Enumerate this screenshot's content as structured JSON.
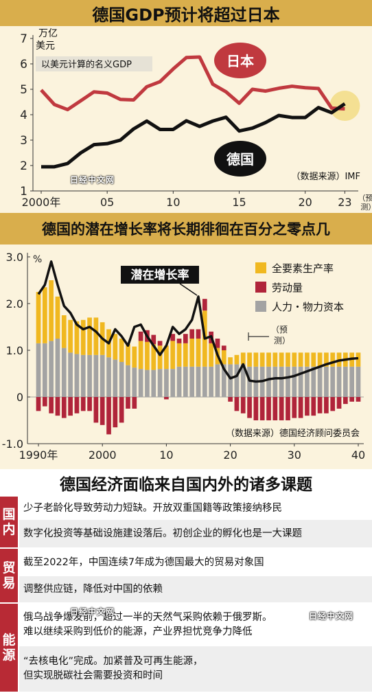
{
  "title1": "德国GDP预计将超过日本",
  "title2": "德国的潜在增长率将长期徘徊在百分之零点几",
  "title3": "德国经济面临来自国内外的诸多课题",
  "chart_data": [
    {
      "type": "line",
      "title": "德国GDP预计将超过日本",
      "ylabel": "万亿美元",
      "note": "以美元计算的名义GDP",
      "source": "（数据来源）IMF",
      "forecast_label": "预测",
      "ylim": [
        1,
        7
      ],
      "yticks": [
        "1",
        "2",
        "3",
        "4",
        "5",
        "6",
        "7"
      ],
      "xticks": [
        {
          "x": 2000,
          "label": "2000年"
        },
        {
          "x": 2005,
          "label": "05"
        },
        {
          "x": 2010,
          "label": "10"
        },
        {
          "x": 2015,
          "label": "15"
        },
        {
          "x": 2020,
          "label": "20"
        },
        {
          "x": 2023,
          "label": "23"
        }
      ],
      "x": [
        2000,
        2001,
        2002,
        2003,
        2004,
        2005,
        2006,
        2007,
        2008,
        2009,
        2010,
        2011,
        2012,
        2013,
        2014,
        2015,
        2016,
        2017,
        2018,
        2019,
        2020,
        2021,
        2022,
        2023
      ],
      "series": [
        {
          "name": "日本",
          "color": "#c0393f",
          "values": [
            4.97,
            4.4,
            4.2,
            4.55,
            4.9,
            4.85,
            4.6,
            4.58,
            5.1,
            5.3,
            5.8,
            6.25,
            6.27,
            5.2,
            4.9,
            4.45,
            5.0,
            4.93,
            5.04,
            5.12,
            5.06,
            5.03,
            4.26,
            4.23
          ]
        },
        {
          "name": "德国",
          "color": "#111111",
          "values": [
            1.95,
            1.95,
            2.08,
            2.5,
            2.82,
            2.86,
            3.0,
            3.44,
            3.75,
            3.42,
            3.42,
            3.76,
            3.54,
            3.75,
            3.9,
            3.36,
            3.47,
            3.69,
            3.97,
            3.89,
            3.89,
            4.28,
            4.08,
            4.43
          ]
        }
      ]
    },
    {
      "type": "bar",
      "title": "德国的潜在增长率将长期徘徊在百分之零点几",
      "ylabel": "%",
      "source": "（数据来源）德国经济顾问委员会",
      "forecast_label": "预测",
      "line_label": "潜在增长率",
      "ylim": [
        -1.0,
        3.0
      ],
      "yticks": [
        "-1.0",
        "0",
        "1.0",
        "2.0",
        "3.0"
      ],
      "xticks": [
        {
          "x": 1990,
          "label": "1990年"
        },
        {
          "x": 2000,
          "label": "2000"
        },
        {
          "x": 2010,
          "label": "10"
        },
        {
          "x": 2020,
          "label": "20"
        },
        {
          "x": 2030,
          "label": "30"
        },
        {
          "x": 2040,
          "label": "40"
        }
      ],
      "x": [
        1990,
        1991,
        1992,
        1993,
        1994,
        1995,
        1996,
        1997,
        1998,
        1999,
        2000,
        2001,
        2002,
        2003,
        2004,
        2005,
        2006,
        2007,
        2008,
        2009,
        2010,
        2011,
        2012,
        2013,
        2014,
        2015,
        2016,
        2017,
        2018,
        2019,
        2020,
        2021,
        2022,
        2023,
        2024,
        2025,
        2026,
        2027,
        2028,
        2029,
        2030,
        2031,
        2032,
        2033,
        2034,
        2035,
        2036,
        2037,
        2038,
        2039,
        2040
      ],
      "series": [
        {
          "name": "全要素生产率",
          "color": "#f0b820",
          "values": [
            1.1,
            1.2,
            1.3,
            0.9,
            0.7,
            0.7,
            0.7,
            0.75,
            0.8,
            0.8,
            0.7,
            0.6,
            0.55,
            0.5,
            0.45,
            0.45,
            0.6,
            0.6,
            0.55,
            0.5,
            0.5,
            0.6,
            0.5,
            0.5,
            0.6,
            0.6,
            1.2,
            0.5,
            0.35,
            0.3,
            0.15,
            0.2,
            0.25,
            0.3,
            0.3,
            0.3,
            0.3,
            0.3,
            0.3,
            0.3,
            0.3,
            0.3,
            0.3,
            0.3,
            0.3,
            0.3,
            0.3,
            0.3,
            0.3,
            0.3,
            0.3
          ]
        },
        {
          "name": "劳动量",
          "color": "#b0243a",
          "values": [
            -0.3,
            -0.2,
            -0.35,
            -0.4,
            -0.45,
            -0.4,
            -0.35,
            -0.3,
            -0.3,
            -0.55,
            -0.6,
            -0.8,
            -0.65,
            -0.55,
            -0.25,
            -0.25,
            0.2,
            0.25,
            0.2,
            0.1,
            -0.05,
            0.15,
            0.1,
            0.2,
            0.2,
            0.2,
            0.25,
            0.25,
            0.2,
            0.1,
            -0.1,
            -0.3,
            -0.35,
            -0.45,
            -0.5,
            -0.5,
            -0.5,
            -0.5,
            -0.5,
            -0.5,
            -0.45,
            -0.45,
            -0.4,
            -0.4,
            -0.35,
            -0.35,
            -0.3,
            -0.25,
            -0.15,
            -0.1,
            -0.1
          ]
        },
        {
          "name": "人力・物力资本",
          "color": "#a3a3a3",
          "values": [
            1.15,
            1.15,
            1.2,
            1.25,
            1.05,
            0.95,
            0.92,
            0.9,
            0.9,
            0.9,
            0.9,
            0.85,
            0.8,
            0.75,
            0.68,
            0.63,
            0.6,
            0.58,
            0.58,
            0.6,
            0.6,
            0.6,
            0.65,
            0.65,
            0.65,
            0.65,
            0.65,
            0.65,
            0.7,
            0.7,
            0.7,
            0.7,
            0.7,
            0.65,
            0.65,
            0.65,
            0.65,
            0.65,
            0.65,
            0.65,
            0.65,
            0.65,
            0.65,
            0.65,
            0.65,
            0.65,
            0.65,
            0.65,
            0.65,
            0.65,
            0.65
          ]
        }
      ],
      "line": {
        "name": "潜在增长率",
        "values": [
          2.2,
          2.4,
          2.9,
          2.4,
          1.95,
          1.8,
          1.55,
          1.45,
          1.5,
          1.4,
          1.25,
          1.15,
          1.45,
          1.3,
          1.1,
          1.5,
          1.55,
          1.3,
          1.1,
          0.9,
          1.1,
          1.5,
          1.35,
          1.45,
          1.65,
          2.15,
          1.25,
          1.3,
          0.9,
          0.6,
          0.4,
          0.45,
          0.7,
          0.35,
          0.33,
          0.34,
          0.38,
          0.4,
          0.4,
          0.42,
          0.45,
          0.5,
          0.55,
          0.6,
          0.65,
          0.7,
          0.74,
          0.78,
          0.8,
          0.82,
          0.83
        ]
      }
    }
  ],
  "groups": [
    {
      "label": "国内",
      "items": [
        "少子老龄化导致劳动力短缺。开放双重国籍等政策接纳移民",
        "数字化投资等基础设施建设落后。初创企业的孵化也是一大课题"
      ]
    },
    {
      "label": "贸易",
      "items": [
        "截至2022年，中国连续7年成为德国最大的贸易对象国",
        "调整供应链，降低对中国的依赖"
      ]
    },
    {
      "label": "能源",
      "items": [
        "俄乌战争爆发前，超过一半的天然气采购依赖于俄罗斯。\n难以继续采购到低价的能源，产业界担忧竞争力降低",
        "“去核电化”完成。加紧普及可再生能源，\n但实现脱碳社会需要投资和时间"
      ]
    }
  ],
  "watermark": "日经中文网"
}
